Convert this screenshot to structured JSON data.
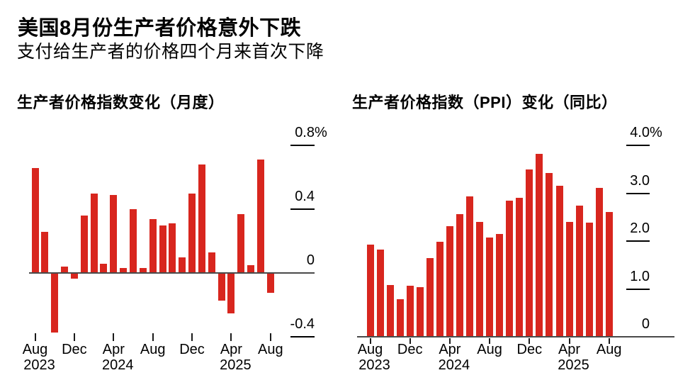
{
  "header": {
    "title": "美国8月份生产者价格意外下跌",
    "subtitle": "支付给生产者的价格四个月来首次下降"
  },
  "colors": {
    "bar_red": "#d8261e",
    "axis_line": "#4a4a4a",
    "tick_black": "#000000"
  },
  "chart_data": [
    {
      "type": "bar",
      "title": "生产者价格指数变化（月度）",
      "unit": "%",
      "xlabel": "",
      "ylabel": "",
      "grid": false,
      "legend": null,
      "ylim": [
        -0.45,
        0.85
      ],
      "x": [
        "Aug 2023",
        "Sep 2023",
        "Oct 2023",
        "Nov 2023",
        "Dec 2023",
        "Jan 2024",
        "Feb 2024",
        "Mar 2024",
        "Apr 2024",
        "May 2024",
        "Jun 2024",
        "Jul 2024",
        "Aug 2024",
        "Sep 2024",
        "Oct 2024",
        "Nov 2024",
        "Dec 2024",
        "Jan 2025",
        "Feb 2025",
        "Mar 2025",
        "Apr 2025",
        "May 2025",
        "Jun 2025",
        "Jul 2025",
        "Aug 2025"
      ],
      "values": [
        0.66,
        0.26,
        -0.37,
        0.04,
        -0.03,
        0.36,
        0.5,
        0.06,
        0.49,
        0.03,
        0.4,
        0.03,
        0.34,
        0.3,
        0.31,
        0.1,
        0.5,
        0.68,
        0.13,
        -0.17,
        -0.25,
        0.37,
        0.05,
        0.71,
        -0.12
      ],
      "y_ticks": [
        {
          "value": 0.8,
          "label": "0.8",
          "suffix": "%"
        },
        {
          "value": 0.4,
          "label": "0.4"
        },
        {
          "value": 0,
          "label": "0",
          "no_line": true
        },
        {
          "value": -0.4,
          "label": "-0.4"
        }
      ],
      "x_ticks": [
        {
          "index": 0,
          "month": "Aug",
          "year": "2023"
        },
        {
          "index": 4,
          "month": "Dec"
        },
        {
          "index": 8,
          "month": "Apr",
          "year": "2024"
        },
        {
          "index": 12,
          "month": "Aug"
        },
        {
          "index": 16,
          "month": "Dec"
        },
        {
          "index": 20,
          "month": "Apr",
          "year": "2025"
        },
        {
          "index": 24,
          "month": "Aug"
        }
      ]
    },
    {
      "type": "bar",
      "title": "生产者价格指数（PPI）变化（同比）",
      "unit": "%",
      "xlabel": "",
      "ylabel": "",
      "grid": false,
      "legend": null,
      "ylim": [
        0,
        4.0
      ],
      "x": [
        "Aug 2023",
        "Sep 2023",
        "Oct 2023",
        "Nov 2023",
        "Dec 2023",
        "Jan 2024",
        "Feb 2024",
        "Mar 2024",
        "Apr 2024",
        "May 2024",
        "Jun 2024",
        "Jul 2024",
        "Aug 2024",
        "Sep 2024",
        "Oct 2024",
        "Nov 2024",
        "Dec 2024",
        "Jan 2025",
        "Feb 2025",
        "Mar 2025",
        "Apr 2025",
        "May 2025",
        "Jun 2025",
        "Jul 2025",
        "Aug 2025"
      ],
      "values": [
        1.92,
        1.82,
        1.08,
        0.78,
        1.06,
        1.04,
        1.64,
        1.99,
        2.31,
        2.56,
        2.93,
        2.4,
        2.07,
        2.15,
        2.85,
        2.91,
        3.5,
        3.83,
        3.43,
        3.16,
        2.4,
        2.74,
        2.38,
        3.11,
        2.61
      ],
      "y_ticks": [
        {
          "value": 4.0,
          "label": "4.0",
          "suffix": "%"
        },
        {
          "value": 3.0,
          "label": "3.0"
        },
        {
          "value": 2.0,
          "label": "2.0"
        },
        {
          "value": 1.0,
          "label": "1.0"
        },
        {
          "value": 0,
          "label": "0",
          "no_line": true
        }
      ],
      "x_ticks": [
        {
          "index": 0,
          "month": "Aug",
          "year": "2023"
        },
        {
          "index": 4,
          "month": "Dec"
        },
        {
          "index": 8,
          "month": "Apr",
          "year": "2024"
        },
        {
          "index": 12,
          "month": "Aug"
        },
        {
          "index": 16,
          "month": "Dec"
        },
        {
          "index": 20,
          "month": "Apr",
          "year": "2025"
        },
        {
          "index": 24,
          "month": "Aug"
        }
      ]
    }
  ]
}
